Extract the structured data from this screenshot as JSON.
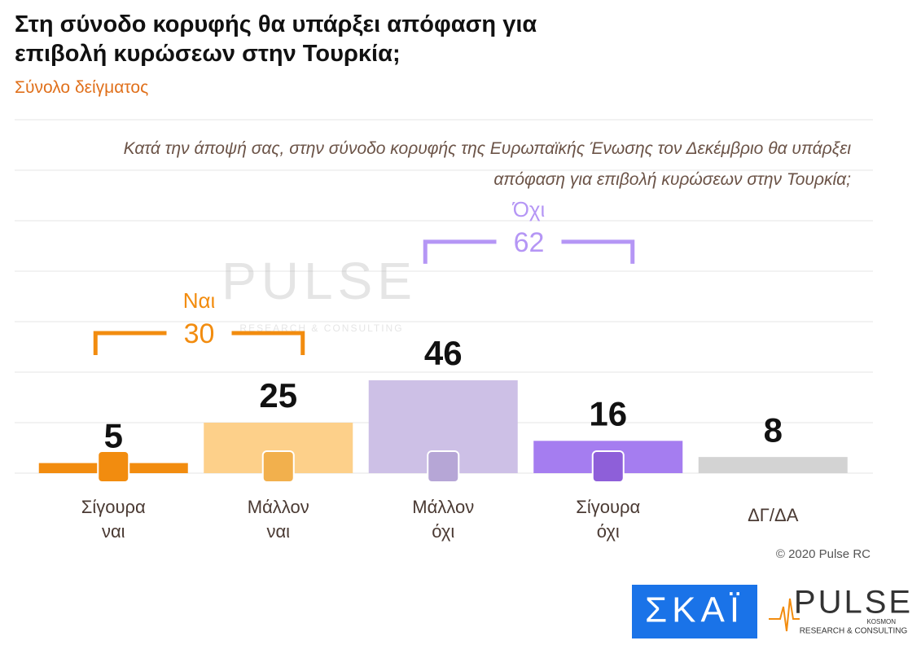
{
  "chart_data": {
    "type": "bar",
    "title": "Στη σύνοδο κορυφής θα υπάρξει απόφαση για επιβολή κυρώσεων στην Τουρκία;",
    "subtitle": "Σύνολο δείγματος",
    "question": "Κατά την άποψή σας, στην σύνοδο κορυφής της Ευρωπαϊκής Ένωσης τον Δεκέμβριο θα υπάρξει απόφαση για επιβολή κυρώσεων στην Τουρκία;",
    "categories": [
      "Σίγουρα ναι",
      "Μάλλον ναι",
      "Μάλλον όχι",
      "Σίγουρα όχι",
      "ΔΓ/ΔΑ"
    ],
    "values": [
      5,
      25,
      46,
      16,
      8
    ],
    "colors": [
      "#f28c0f",
      "#fdd08a",
      "#cdc0e6",
      "#a57df0",
      "#d3d3d3"
    ],
    "groups": [
      {
        "label": "Ναι",
        "value": 30,
        "color": "#f28c0f",
        "from": 0,
        "to": 1
      },
      {
        "label": "Όχι",
        "value": 62,
        "color": "#b596f5",
        "from": 2,
        "to": 3
      }
    ],
    "ylim": [
      0,
      175
    ],
    "yticks": [
      0,
      25,
      50,
      75,
      100,
      125,
      150,
      175
    ],
    "grid": true,
    "copyright": "© 2020 Pulse RC",
    "logos": {
      "skai": "ΣΚΑΪ",
      "pulse": "PULSE",
      "kosmon": "KOSMON",
      "tagline": "RESEARCH & CONSULTING"
    }
  }
}
